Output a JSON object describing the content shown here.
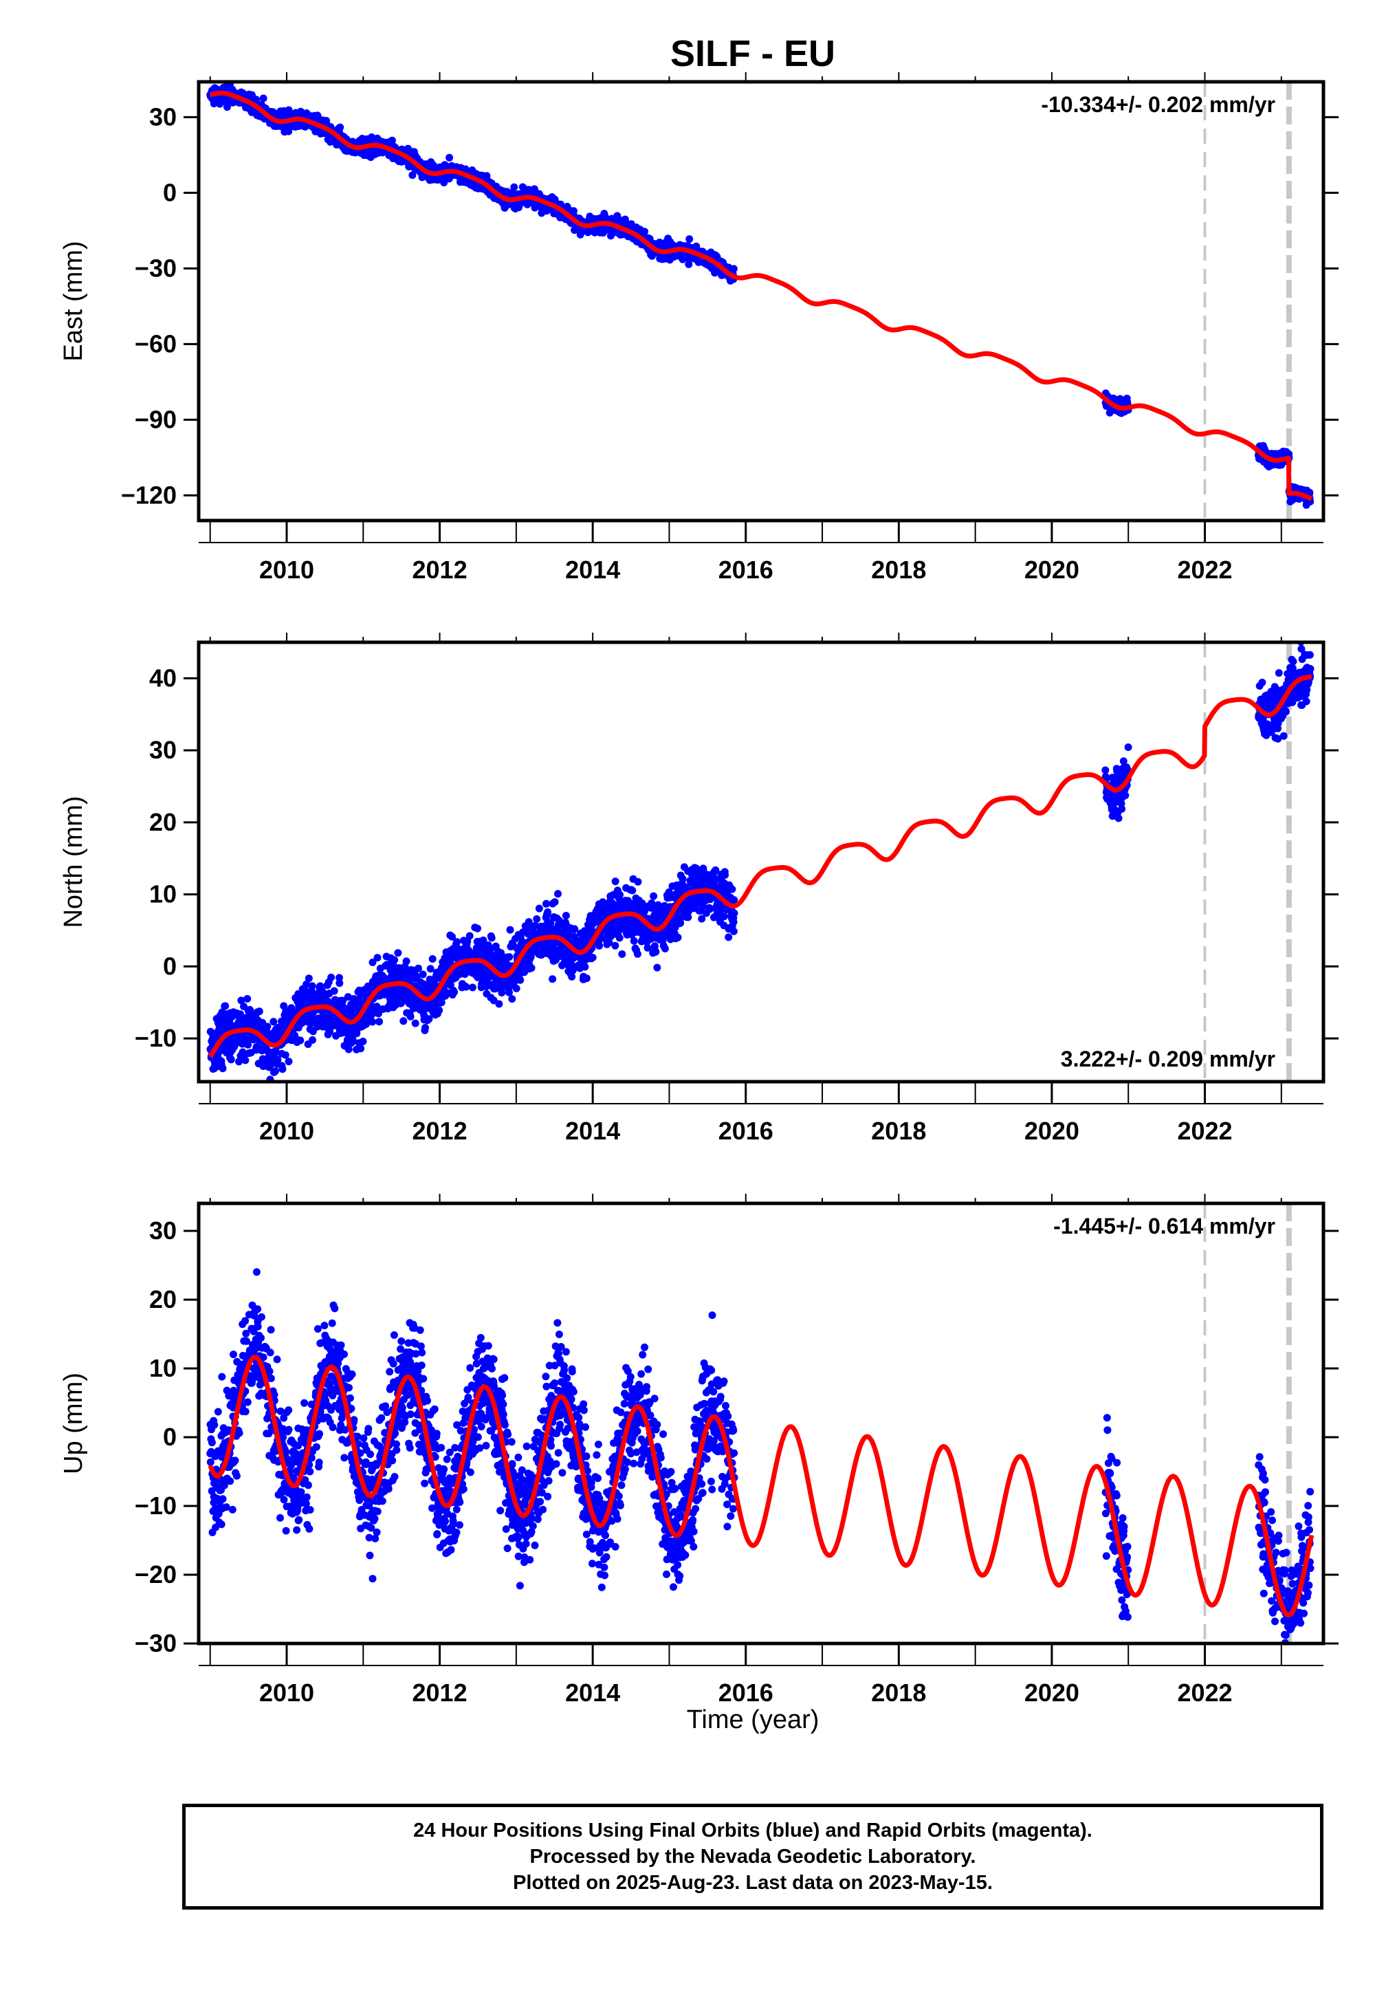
{
  "title": "SILF - EU",
  "xlabel": "Time (year)",
  "footer": {
    "lines": [
      "24 Hour Positions Using Final Orbits (blue) and Rapid Orbits (magenta).",
      "Processed by the Nevada Geodetic Laboratory.",
      "Plotted on 2025-Aug-23. Last data on 2023-May-15."
    ]
  },
  "colors": {
    "data_points": "#0000ff",
    "model_line": "#ff0000",
    "dashed_lines": "#c8c8c8",
    "frame": "#000000"
  },
  "chart_data": [
    {
      "type": "scatter",
      "panel": "east",
      "ylabel": "East (mm)",
      "xlim": [
        2008.85,
        2023.55
      ],
      "ylim": [
        -130,
        44
      ],
      "x_ticks": [
        2010,
        2012,
        2014,
        2016,
        2018,
        2020,
        2022
      ],
      "y_ticks": [
        30,
        0,
        -30,
        -60,
        -90,
        -120
      ],
      "rate_label": "-10.334+/- 0.202 mm/yr",
      "rate_position": "top-right",
      "rate_mm_per_yr": -10.334,
      "intercept_2009": 40,
      "annual_amplitude_mm": 2.0,
      "semiannual_amplitude_mm": 0.5,
      "offset_at_2023_1_mm": -14,
      "noise_mm": 1.5,
      "data_spans": [
        [
          2009.0,
          2015.85
        ],
        [
          2020.7,
          2021.0
        ],
        [
          2022.7,
          2023.38
        ]
      ],
      "dashed_lines": [
        2022.0,
        2023.1
      ],
      "series": [
        {
          "values_model": "linear trend + seasonal terms + step"
        }
      ]
    },
    {
      "type": "scatter",
      "panel": "north",
      "ylabel": "North (mm)",
      "xlim": [
        2008.85,
        2023.55
      ],
      "ylim": [
        -16,
        45
      ],
      "x_ticks": [
        2010,
        2012,
        2014,
        2016,
        2018,
        2020,
        2022
      ],
      "y_ticks": [
        40,
        30,
        20,
        10,
        0,
        -10
      ],
      "rate_label": "3.222+/- 0.209 mm/yr",
      "rate_position": "bottom-right",
      "rate_mm_per_yr": 3.222,
      "intercept_2009": -11.5,
      "annual_amplitude_mm": 1.8,
      "semiannual_amplitude_mm": 0.4,
      "offset_at_2022_0_mm": 4,
      "noise_mm": 1.8,
      "data_spans": [
        [
          2009.0,
          2015.85
        ],
        [
          2020.7,
          2021.0
        ],
        [
          2022.7,
          2023.38
        ]
      ],
      "dashed_lines": [
        2022.0,
        2023.1
      ],
      "series": [
        {
          "values_model": "linear trend + seasonal terms + step"
        }
      ]
    },
    {
      "type": "scatter",
      "panel": "up",
      "ylabel": "Up (mm)",
      "xlim": [
        2008.85,
        2023.55
      ],
      "ylim": [
        -30,
        34
      ],
      "x_ticks": [
        2010,
        2012,
        2014,
        2016,
        2018,
        2020,
        2022
      ],
      "y_ticks": [
        30,
        20,
        10,
        0,
        -10,
        -20,
        -30
      ],
      "rate_label": "-1.445+/- 0.614 mm/yr",
      "rate_position": "top-right",
      "rate_mm_per_yr": -1.445,
      "intercept_2009": 3.5,
      "annual_amplitude_mm": 9.0,
      "annual_peak_year_fraction": 0.59,
      "noise_mm": 4.0,
      "data_spans": [
        [
          2009.0,
          2015.85
        ],
        [
          2020.7,
          2021.0
        ],
        [
          2022.7,
          2023.38
        ]
      ],
      "dashed_lines": [
        2022.0,
        2023.1
      ],
      "series": [
        {
          "values_model": "linear trend + seasonal terms"
        }
      ]
    }
  ]
}
